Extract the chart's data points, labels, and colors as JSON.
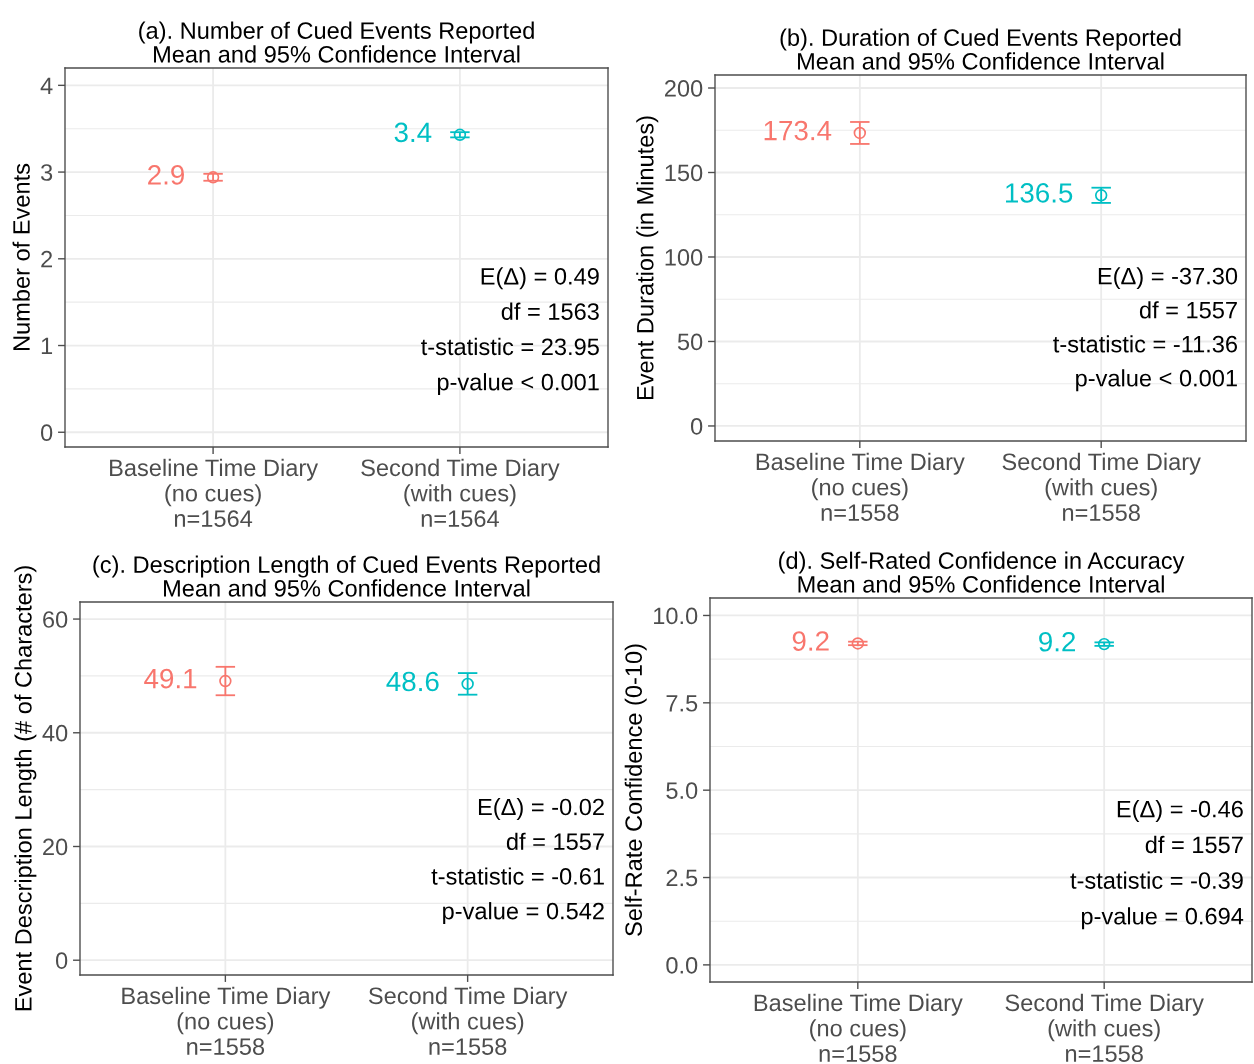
{
  "chart_data": [
    {
      "type": "scatter",
      "title": "(a). Number of Cued Events Reported",
      "subtitle": "Mean and 95% Confidence Interval",
      "ylabel": "Number of Events",
      "categories": [
        "Baseline Time Diary\n(no cues)\nn=1564",
        "Second Time Diary\n(with cues)\nn=1564"
      ],
      "values": [
        2.94,
        3.43
      ],
      "errors": [
        0.04,
        0.03
      ],
      "value_labels": [
        "2.9",
        "3.4"
      ],
      "colors": [
        "#f8766d",
        "#00bfc4"
      ],
      "ylim": [
        -0.17,
        4.2
      ],
      "yticks": [
        0,
        1,
        2,
        3,
        4
      ],
      "grid": true,
      "marker": "circle",
      "annotations": [
        "E(Δ) = 0.49",
        "df = 1563",
        "t-statistic = 23.95",
        "p-value < 0.001"
      ]
    },
    {
      "type": "scatter",
      "title": "(b). Duration of Cued Events Reported",
      "subtitle": "Mean and 95% Confidence Interval",
      "ylabel": "Event Duration (in Minutes)",
      "categories": [
        "Baseline Time Diary\n(no cues)\nn=1558",
        "Second Time Diary\n(with cues)\nn=1558"
      ],
      "values": [
        173.4,
        136.5
      ],
      "errors": [
        6.5,
        4.5
      ],
      "value_labels": [
        "173.4",
        "136.5"
      ],
      "colors": [
        "#f8766d",
        "#00bfc4"
      ],
      "ylim": [
        -8.9,
        207.7
      ],
      "yticks": [
        0,
        50,
        100,
        150,
        200
      ],
      "grid": true,
      "marker": "circle",
      "annotations": [
        "E(Δ) = -37.30",
        "df = 1557",
        "t-statistic = -11.36",
        "p-value < 0.001"
      ]
    },
    {
      "type": "scatter",
      "title": "(c). Description Length of Cued Events Reported",
      "subtitle": "Mean and 95% Confidence Interval",
      "ylabel": "Event Description Length (# of Characters)",
      "categories": [
        "Baseline Time Diary\n(no cues)\nn=1558",
        "Second Time Diary\n(with cues)\nn=1558"
      ],
      "values": [
        49.1,
        48.6
      ],
      "errors": [
        2.5,
        1.9
      ],
      "value_labels": [
        "49.1",
        "48.6"
      ],
      "colors": [
        "#f8766d",
        "#00bfc4"
      ],
      "ylim": [
        -2.6,
        63
      ],
      "yticks": [
        0,
        20,
        40,
        60
      ],
      "grid": true,
      "marker": "circle",
      "annotations": [
        "E(Δ) = -0.02",
        "df = 1557",
        "t-statistic = -0.61",
        "p-value = 0.542"
      ]
    },
    {
      "type": "scatter",
      "title": "(d). Self-Rated Confidence in Accuracy",
      "subtitle": "Mean and 95% Confidence Interval",
      "ylabel": "Self-Rate Confidence (0-10)",
      "categories": [
        "Baseline Time Diary\n(no cues)\nn=1558",
        "Second Time Diary\n(with cues)\nn=1558"
      ],
      "values": [
        9.2,
        9.18
      ],
      "errors": [
        0.05,
        0.05
      ],
      "value_labels": [
        "9.2",
        "9.2"
      ],
      "colors": [
        "#f8766d",
        "#00bfc4"
      ],
      "ylim": [
        -0.49,
        10.5
      ],
      "yticks": [
        {
          "value": 0,
          "label": "0.0"
        },
        2.5,
        {
          "value": 5,
          "label": "5.0"
        },
        7.5,
        {
          "value": 10,
          "label": "10.0"
        }
      ],
      "grid": true,
      "marker": "circle",
      "annotations": [
        "E(Δ) = -0.46",
        "df = 1557",
        "t-statistic = -0.39",
        "p-value = 0.694"
      ]
    }
  ]
}
